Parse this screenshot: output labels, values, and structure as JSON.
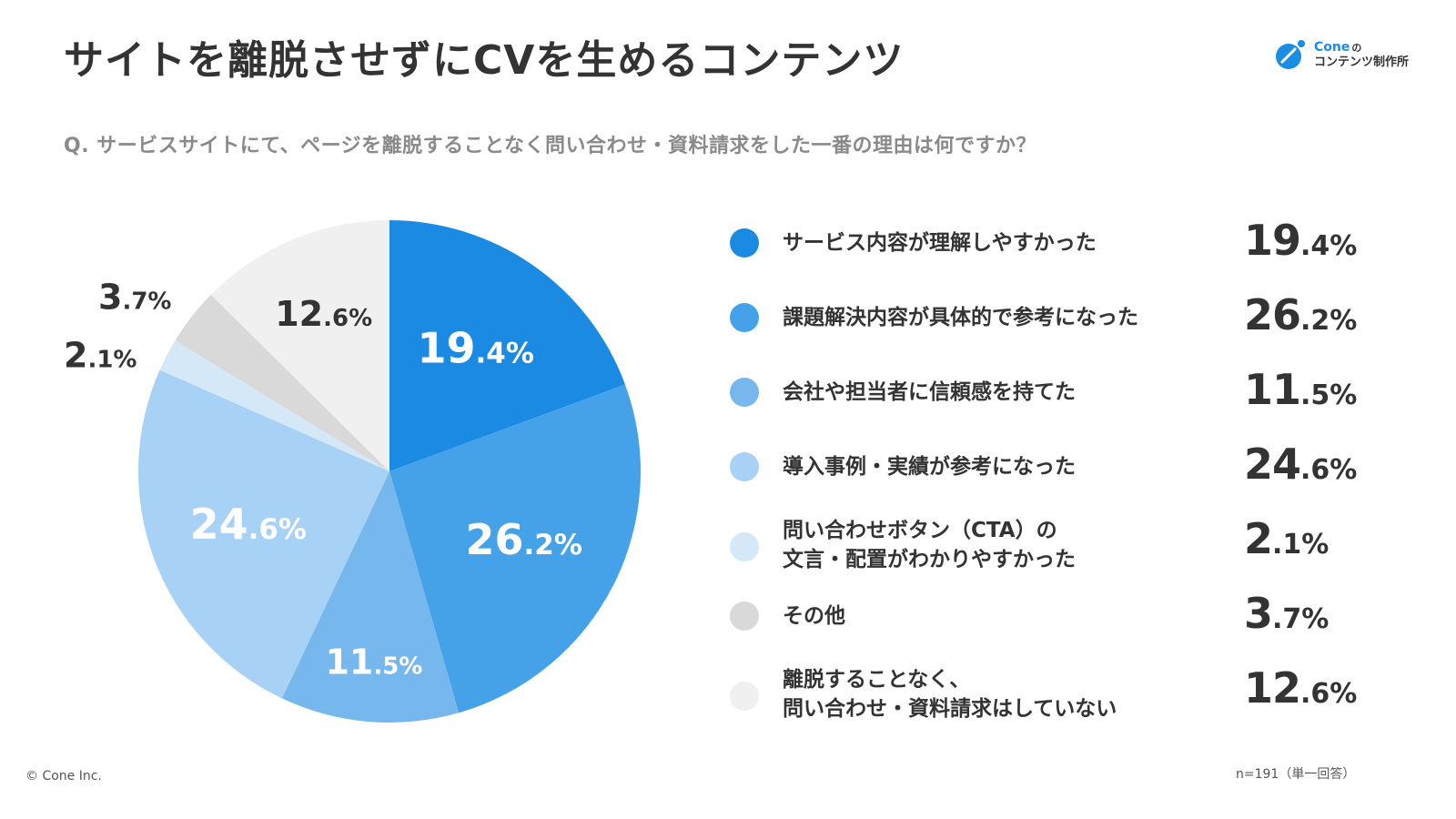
{
  "title": "サイトを離脱させずにCVを生めるコンテンツ",
  "logo": {
    "brand": "Cone",
    "particle": "の",
    "subtitle": "コンテンツ制作所",
    "accent": "#1a8ee3"
  },
  "question": "Q. サービスサイトにて、ページを離脱することなく問い合わせ・資料請求をした一番の理由は何ですか？",
  "chart_data": {
    "type": "pie",
    "title": "サイトを離脱させずにCVを生めるコンテンツ",
    "start_angle_deg": 0,
    "direction": "clockwise",
    "slices": [
      {
        "label": "サービス内容が理解しやすかった",
        "value": 19.4,
        "color": "#1a8ae3",
        "label_color": "#ffffff"
      },
      {
        "label": "課題解決内容が具体的で参考になった",
        "value": 26.2,
        "color": "#45a2e8",
        "label_color": "#ffffff"
      },
      {
        "label": "会社や担当者に信頼感を持てた",
        "value": 11.5,
        "color": "#76b8ed",
        "label_color": "#ffffff"
      },
      {
        "label": "導入事例・実績が参考になった",
        "value": 24.6,
        "color": "#a7d2f5",
        "label_color": "#ffffff"
      },
      {
        "label": "問い合わせボタン（CTA）の\n文言・配置がわかりやすかった",
        "value": 2.1,
        "color": "#d5e8f8",
        "label_color": "#333333"
      },
      {
        "label": "その他",
        "value": 3.7,
        "color": "#d9d9d9",
        "label_color": "#333333"
      },
      {
        "label": "離脱することなく、\n問い合わせ・資料請求はしていない",
        "value": 12.6,
        "color": "#f0f0f0",
        "label_color": "#333333"
      }
    ]
  },
  "footer": {
    "copyright": "© Cone Inc.",
    "sample": "n=191（単一回答）"
  }
}
